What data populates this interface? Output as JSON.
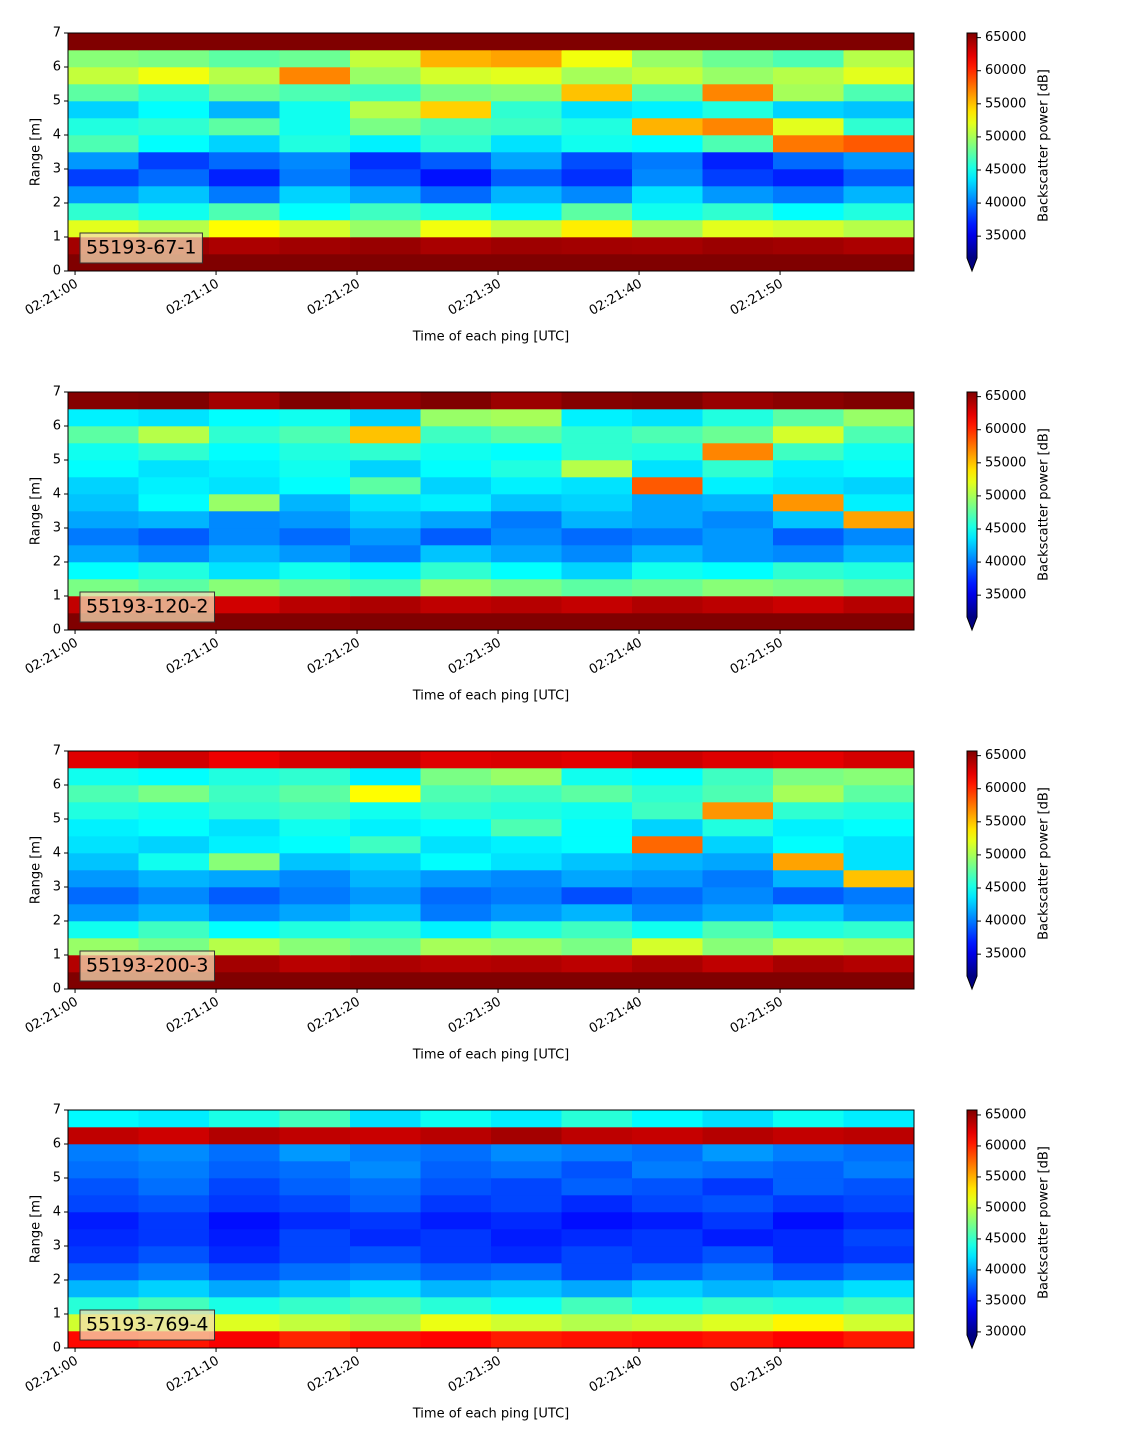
{
  "chart_data": [
    {
      "type": "heatmap",
      "label": "55193-67-1",
      "x_label": "Time of each ping [UTC]",
      "y_label": "Range [m]",
      "colorbar_label": "Backscatter power [dB]",
      "colormap": "jet",
      "x": [
        "02:21:02",
        "02:21:07",
        "02:21:12",
        "02:21:17",
        "02:21:22",
        "02:21:27",
        "02:21:32",
        "02:21:37",
        "02:21:42",
        "02:21:47",
        "02:21:52",
        "02:21:57"
      ],
      "y": [
        0.25,
        0.75,
        1.25,
        1.75,
        2.25,
        2.75,
        3.25,
        3.75,
        4.25,
        4.75,
        5.25,
        5.75,
        6.25,
        6.75
      ],
      "z": [
        [
          66000,
          66000,
          66000,
          66000,
          66000,
          66000,
          66000,
          66000,
          66000,
          66000,
          66000,
          66000
        ],
        [
          64500,
          64800,
          64200,
          64600,
          64900,
          64300,
          64700,
          64500,
          64400,
          64800,
          64600,
          64200
        ],
        [
          52000,
          50500,
          53000,
          51500,
          49500,
          52500,
          51000,
          53500,
          50000,
          52000,
          51500,
          50500
        ],
        [
          46000,
          45000,
          47000,
          44500,
          46500,
          45500,
          44000,
          47500,
          45000,
          46000,
          44500,
          45500
        ],
        [
          41000,
          42500,
          40000,
          43000,
          41500,
          39500,
          42000,
          40500,
          43500,
          41000,
          40000,
          42000
        ],
        [
          38000,
          39500,
          37000,
          40000,
          38500,
          36500,
          39000,
          37500,
          40500,
          38000,
          37000,
          39000
        ],
        [
          41000,
          38000,
          39500,
          40500,
          37500,
          39000,
          41500,
          38500,
          40000,
          37000,
          39500,
          41000
        ],
        [
          47000,
          44500,
          43000,
          45500,
          44000,
          46000,
          43500,
          45000,
          44500,
          47000,
          57500,
          58500
        ],
        [
          45500,
          46000,
          47500,
          45000,
          48500,
          47000,
          46500,
          45500,
          55500,
          57000,
          52000,
          46000
        ],
        [
          43000,
          44500,
          42000,
          45000,
          50500,
          54500,
          46000,
          43500,
          44000,
          45500,
          43000,
          42500
        ],
        [
          47500,
          46000,
          48000,
          47000,
          46500,
          48500,
          49000,
          55000,
          47500,
          57000,
          50000,
          47000
        ],
        [
          51000,
          52500,
          50500,
          57000,
          49500,
          51500,
          52000,
          50000,
          51000,
          49500,
          50500,
          52000
        ],
        [
          49000,
          48500,
          47500,
          48000,
          51000,
          55500,
          56000,
          52500,
          49500,
          48000,
          47000,
          50500
        ],
        [
          66000,
          66000,
          66000,
          66000,
          66000,
          66000,
          66000,
          66000,
          66000,
          66000,
          66000,
          66000
        ]
      ],
      "xlim": [
        "02:20:59.5",
        "02:21:59.5"
      ],
      "ylim": [
        0,
        7
      ],
      "xticks": [
        "02:21:00",
        "02:21:10",
        "02:21:20",
        "02:21:30",
        "02:21:40",
        "02:21:50"
      ],
      "yticks": [
        0,
        1,
        2,
        3,
        4,
        5,
        6,
        7
      ],
      "clim": [
        31700,
        65700
      ],
      "cticks": [
        35000,
        40000,
        45000,
        50000,
        55000,
        60000,
        65000
      ]
    },
    {
      "type": "heatmap",
      "label": "55193-120-2",
      "x_label": "Time of each ping [UTC]",
      "y_label": "Range [m]",
      "colorbar_label": "Backscatter power [dB]",
      "colormap": "jet",
      "x": [
        "02:21:02",
        "02:21:07",
        "02:21:12",
        "02:21:17",
        "02:21:22",
        "02:21:27",
        "02:21:32",
        "02:21:37",
        "02:21:42",
        "02:21:47",
        "02:21:52",
        "02:21:57"
      ],
      "y": [
        0.25,
        0.75,
        1.25,
        1.75,
        2.25,
        2.75,
        3.25,
        3.75,
        4.25,
        4.75,
        5.25,
        5.75,
        6.25,
        6.75
      ],
      "z": [
        [
          66000,
          66000,
          66000,
          66000,
          66000,
          66000,
          66000,
          66000,
          66000,
          66000,
          66000,
          66000
        ],
        [
          63500,
          64000,
          63000,
          63800,
          64200,
          63600,
          63900,
          63400,
          64100,
          63700,
          63200,
          63900
        ],
        [
          48500,
          47500,
          49000,
          48000,
          47000,
          49500,
          48500,
          47500,
          48000,
          49000,
          48500,
          47500
        ],
        [
          44500,
          45500,
          43500,
          45000,
          44000,
          46000,
          44500,
          43000,
          45000,
          44500,
          46000,
          45500
        ],
        [
          41500,
          40500,
          42000,
          41000,
          40000,
          42500,
          41500,
          40500,
          42000,
          41000,
          40500,
          42000
        ],
        [
          40000,
          39000,
          40500,
          39500,
          41000,
          39000,
          40500,
          39500,
          40000,
          41000,
          39000,
          40500
        ],
        [
          41500,
          42000,
          40500,
          41000,
          42500,
          41500,
          40000,
          42000,
          41500,
          40500,
          42500,
          56000
        ],
        [
          42500,
          44500,
          49500,
          42000,
          43500,
          44000,
          42500,
          43000,
          41500,
          42000,
          56500,
          44000
        ],
        [
          43000,
          44000,
          43500,
          44500,
          47500,
          43000,
          44000,
          43500,
          58500,
          44000,
          43500,
          43000
        ],
        [
          44500,
          43500,
          44000,
          45000,
          43000,
          44500,
          45500,
          50500,
          43500,
          46000,
          44000,
          44500
        ],
        [
          45000,
          46000,
          44500,
          45500,
          46000,
          45000,
          44500,
          46000,
          45500,
          57000,
          46500,
          45000
        ],
        [
          47500,
          50500,
          46000,
          47000,
          55000,
          46500,
          47500,
          46000,
          47000,
          48000,
          51500,
          47000
        ],
        [
          44000,
          43500,
          44500,
          45000,
          43000,
          49500,
          50000,
          44000,
          43500,
          45500,
          47500,
          49500
        ],
        [
          65500,
          66000,
          64500,
          65800,
          65000,
          65700,
          64800,
          65500,
          66000,
          64900,
          65300,
          65800
        ]
      ],
      "xlim": [
        "02:20:59.5",
        "02:21:59.5"
      ],
      "ylim": [
        0,
        7
      ],
      "xticks": [
        "02:21:00",
        "02:21:10",
        "02:21:20",
        "02:21:30",
        "02:21:40",
        "02:21:50"
      ],
      "yticks": [
        0,
        1,
        2,
        3,
        4,
        5,
        6,
        7
      ],
      "clim": [
        31700,
        65700
      ],
      "cticks": [
        35000,
        40000,
        45000,
        50000,
        55000,
        60000,
        65000
      ]
    },
    {
      "type": "heatmap",
      "label": "55193-200-3",
      "x_label": "Time of each ping [UTC]",
      "y_label": "Range [m]",
      "colorbar_label": "Backscatter power [dB]",
      "colormap": "jet",
      "x": [
        "02:21:02",
        "02:21:07",
        "02:21:12",
        "02:21:17",
        "02:21:22",
        "02:21:27",
        "02:21:32",
        "02:21:37",
        "02:21:42",
        "02:21:47",
        "02:21:52",
        "02:21:57"
      ],
      "y": [
        0.25,
        0.75,
        1.25,
        1.75,
        2.25,
        2.75,
        3.25,
        3.75,
        4.25,
        4.75,
        5.25,
        5.75,
        6.25,
        6.75
      ],
      "z": [
        [
          66000,
          66000,
          66000,
          66000,
          66000,
          66000,
          66000,
          66000,
          66000,
          66000,
          66000,
          66000
        ],
        [
          64000,
          63500,
          64500,
          63800,
          64200,
          63900,
          64100,
          63700,
          64300,
          63600,
          64400,
          64000
        ],
        [
          49500,
          48500,
          50500,
          49000,
          48000,
          50000,
          49500,
          48500,
          51500,
          49000,
          50500,
          50000
        ],
        [
          45000,
          46500,
          44500,
          45500,
          46000,
          44000,
          45500,
          46500,
          45000,
          47000,
          45500,
          46000
        ],
        [
          41000,
          42000,
          40500,
          41500,
          42500,
          40000,
          41000,
          42000,
          40500,
          41500,
          42500,
          41000
        ],
        [
          39500,
          40500,
          39000,
          40000,
          41000,
          39500,
          40000,
          38500,
          39500,
          40500,
          39000,
          40000
        ],
        [
          41000,
          42000,
          41500,
          40500,
          42000,
          41000,
          40500,
          41500,
          41000,
          40000,
          42000,
          55000
        ],
        [
          42500,
          45000,
          49000,
          42500,
          43000,
          44500,
          43500,
          42500,
          42000,
          41500,
          56000,
          43500
        ],
        [
          43500,
          43000,
          44000,
          44500,
          46500,
          43500,
          44000,
          44500,
          58000,
          43000,
          44500,
          43500
        ],
        [
          44000,
          44500,
          43500,
          45000,
          44000,
          44500,
          47000,
          44500,
          43000,
          45500,
          44000,
          44500
        ],
        [
          45500,
          45000,
          46000,
          46500,
          45000,
          46000,
          45500,
          45000,
          46500,
          56500,
          46000,
          45500
        ],
        [
          47000,
          48500,
          46500,
          47500,
          53000,
          47000,
          46500,
          47500,
          46000,
          47000,
          50000,
          47500
        ],
        [
          45000,
          44500,
          45500,
          46000,
          44000,
          48500,
          49500,
          45000,
          44500,
          46500,
          48500,
          49000
        ],
        [
          62500,
          63000,
          62000,
          62800,
          63200,
          62500,
          62700,
          62400,
          63100,
          62600,
          62300,
          62900
        ]
      ],
      "xlim": [
        "02:20:59.5",
        "02:21:59.5"
      ],
      "ylim": [
        0,
        7
      ],
      "xticks": [
        "02:21:00",
        "02:21:10",
        "02:21:20",
        "02:21:30",
        "02:21:40",
        "02:21:50"
      ],
      "yticks": [
        0,
        1,
        2,
        3,
        4,
        5,
        6,
        7
      ],
      "clim": [
        31700,
        65700
      ],
      "cticks": [
        35000,
        40000,
        45000,
        50000,
        55000,
        60000,
        65000
      ]
    },
    {
      "type": "heatmap",
      "label": "55193-769-4",
      "x_label": "Time of each ping [UTC]",
      "y_label": "Range [m]",
      "colorbar_label": "Backscatter power [dB]",
      "colormap": "jet",
      "x": [
        "02:21:02",
        "02:21:07",
        "02:21:12",
        "02:21:17",
        "02:21:22",
        "02:21:27",
        "02:21:32",
        "02:21:37",
        "02:21:42",
        "02:21:47",
        "02:21:52",
        "02:21:57"
      ],
      "y": [
        0.25,
        0.75,
        1.25,
        1.75,
        2.25,
        2.75,
        3.25,
        3.75,
        4.25,
        4.75,
        5.25,
        5.75,
        6.25,
        6.75
      ],
      "z": [
        [
          61000,
          60500,
          61500,
          60000,
          60800,
          61200,
          60300,
          60700,
          61000,
          60600,
          61300,
          60400
        ],
        [
          50500,
          49500,
          51000,
          50000,
          49000,
          51500,
          50500,
          49500,
          50000,
          51000,
          52500,
          50500
        ],
        [
          44500,
          45500,
          44000,
          45000,
          46000,
          44500,
          43500,
          45500,
          44000,
          45000,
          44500,
          45500
        ],
        [
          40500,
          41500,
          40000,
          41000,
          42000,
          40500,
          41000,
          40000,
          41500,
          40500,
          41000,
          42000
        ],
        [
          37500,
          38500,
          37000,
          38000,
          38500,
          37500,
          38000,
          36500,
          37500,
          38500,
          37000,
          38000
        ],
        [
          36000,
          37000,
          35500,
          36500,
          37000,
          36000,
          35500,
          36500,
          36000,
          37000,
          35500,
          36000
        ],
        [
          35500,
          36000,
          35000,
          36500,
          35500,
          36000,
          35000,
          35500,
          36000,
          35000,
          35500,
          36500
        ],
        [
          35000,
          36000,
          34500,
          35500,
          36000,
          35000,
          35500,
          34500,
          35000,
          36000,
          34500,
          35500
        ],
        [
          36500,
          37000,
          36000,
          36500,
          37500,
          36000,
          36500,
          35500,
          36500,
          37000,
          36000,
          36500
        ],
        [
          37000,
          38000,
          36500,
          37500,
          38000,
          37000,
          36500,
          37500,
          37000,
          36000,
          37500,
          37000
        ],
        [
          38000,
          38500,
          37500,
          38000,
          39000,
          37500,
          38000,
          37000,
          38500,
          38000,
          37500,
          38500
        ],
        [
          38500,
          39000,
          38000,
          39500,
          38500,
          38000,
          39000,
          38500,
          38000,
          39500,
          38500,
          38000
        ],
        [
          63500,
          63000,
          64000,
          63500,
          63200,
          63800,
          64500,
          63600,
          63300,
          63900,
          63400,
          63700
        ],
        [
          43000,
          42500,
          44000,
          45500,
          42000,
          43500,
          42500,
          44500,
          43000,
          42000,
          43500,
          42500
        ]
      ],
      "xlim": [
        "02:20:59.5",
        "02:21:59.5"
      ],
      "ylim": [
        0,
        7
      ],
      "xticks": [
        "02:21:00",
        "02:21:10",
        "02:21:20",
        "02:21:30",
        "02:21:40",
        "02:21:50"
      ],
      "yticks": [
        0,
        1,
        2,
        3,
        4,
        5,
        6,
        7
      ],
      "clim": [
        29500,
        65800
      ],
      "cticks": [
        30000,
        35000,
        40000,
        45000,
        50000,
        55000,
        60000,
        65000
      ]
    }
  ]
}
